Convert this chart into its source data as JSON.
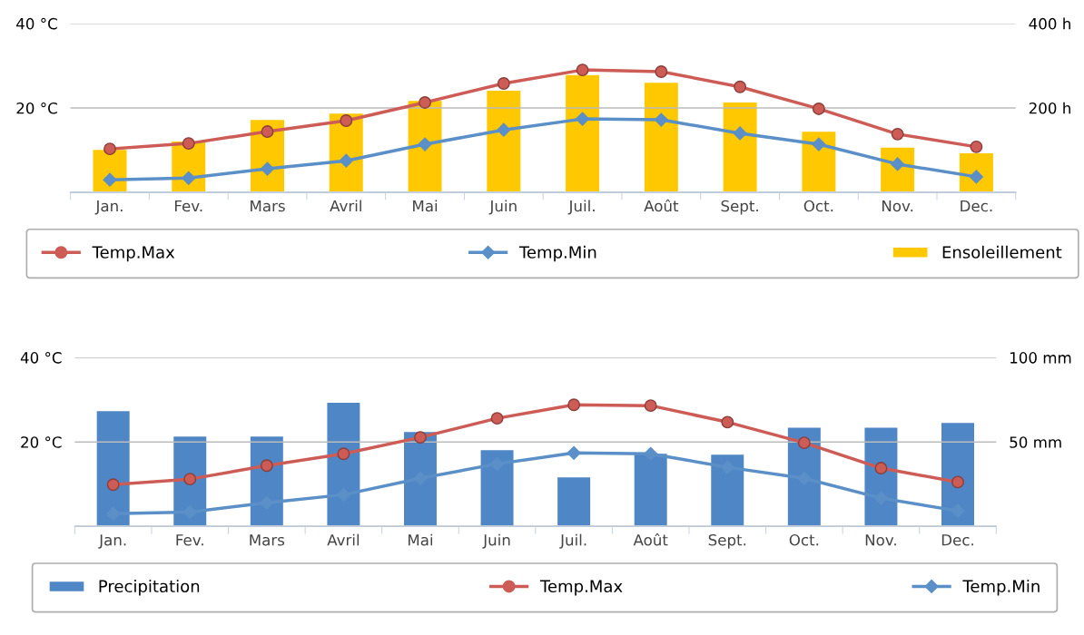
{
  "chart_data": [
    {
      "type": "line",
      "categories": [
        "Jan.",
        "Fev.",
        "Mars",
        "Avril",
        "Mai",
        "Juin",
        "Juil.",
        "Août",
        "Sept.",
        "Oct.",
        "Nov.",
        "Dec."
      ],
      "series": [
        {
          "name": "Temp.Max",
          "color": "#cd5c57",
          "marker": "circle",
          "values": [
            10.3,
            11.6,
            14.4,
            17.0,
            21.3,
            25.8,
            29.0,
            28.6,
            25.0,
            19.8,
            13.8,
            10.8
          ]
        },
        {
          "name": "Temp.Min",
          "color": "#5b8fc7",
          "marker": "diamond",
          "values": [
            3.0,
            3.4,
            5.6,
            7.5,
            11.4,
            14.8,
            17.4,
            17.2,
            14.0,
            11.4,
            6.7,
            3.7
          ]
        },
        {
          "name": "Ensoleillement",
          "type": "bar",
          "axis": "y2",
          "color": "#ffc800",
          "values": [
            103,
            123,
            174,
            189,
            219,
            243,
            280,
            262,
            215,
            146,
            108,
            95
          ]
        }
      ],
      "ylim": [
        0,
        40
      ],
      "yticks": [
        {
          "value": 0,
          "label": null
        },
        {
          "value": 20,
          "label": "20 °C"
        },
        {
          "value": 40,
          "label": "40 °C"
        }
      ],
      "y2lim": [
        0,
        400
      ],
      "y2ticks": [
        {
          "value": 0,
          "label": null
        },
        {
          "value": 200,
          "label": "200 h"
        },
        {
          "value": 400,
          "label": "400 h"
        }
      ],
      "grid": "y",
      "legend": "bottom",
      "line_style": "solid"
    },
    {
      "type": "line",
      "categories": [
        "Jan.",
        "Fev.",
        "Mars",
        "Avril",
        "Mai",
        "Juin",
        "Juil.",
        "Août",
        "Sept.",
        "Oct.",
        "Nov.",
        "Dec."
      ],
      "series": [
        {
          "name": "Precipitation",
          "type": "bar",
          "axis": "y2",
          "color": "#4f86c6",
          "values": [
            68.8,
            53.8,
            53.8,
            73.7,
            56.5,
            45.7,
            29.6,
            43.5,
            43.0,
            59.0,
            59.0,
            61.8
          ]
        },
        {
          "name": "Temp.Max",
          "color": "#cd5c57",
          "marker": "circle",
          "values": [
            9.9,
            11.2,
            14.4,
            17.2,
            21.1,
            25.6,
            28.8,
            28.6,
            24.7,
            19.8,
            13.8,
            10.5
          ]
        },
        {
          "name": "Temp.Min",
          "color": "#5b8fc7",
          "marker": "diamond",
          "values": [
            3.0,
            3.4,
            5.6,
            7.5,
            11.4,
            14.8,
            17.4,
            17.2,
            14.0,
            11.4,
            6.7,
            3.7
          ]
        }
      ],
      "ylim": [
        0,
        40
      ],
      "yticks": [
        {
          "value": 0,
          "label": null
        },
        {
          "value": 20,
          "label": "20 °C"
        },
        {
          "value": 40,
          "label": "40 °C"
        }
      ],
      "y2lim": [
        0,
        100
      ],
      "y2ticks": [
        {
          "value": 0,
          "label": null
        },
        {
          "value": 50,
          "label": "50 mm"
        },
        {
          "value": 100,
          "label": "100 mm"
        }
      ],
      "grid": "y",
      "legend": "bottom",
      "line_style": "solid"
    }
  ]
}
